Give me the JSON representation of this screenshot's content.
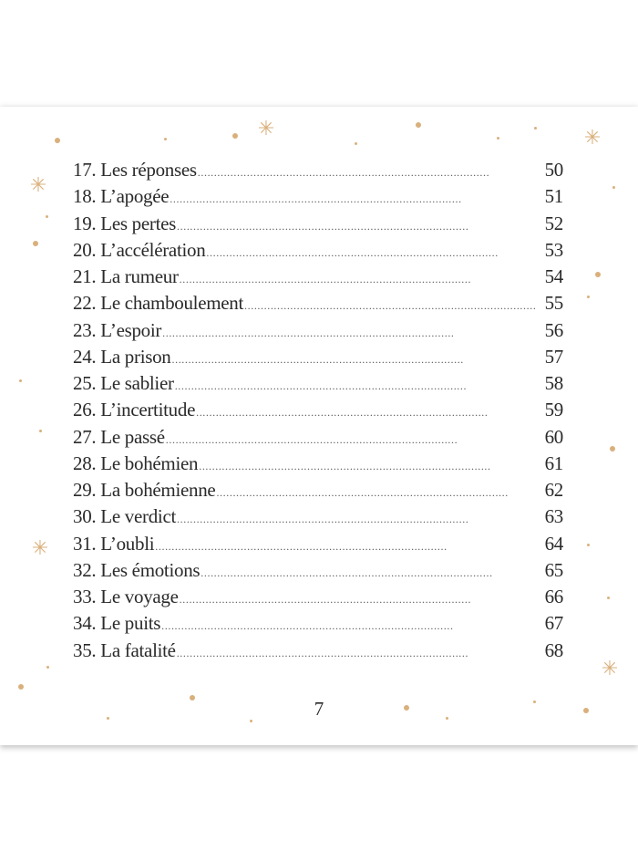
{
  "toc": [
    {
      "title": "17. Les réponses",
      "page": "50"
    },
    {
      "title": "18. L’apogée",
      "page": "51"
    },
    {
      "title": "19. Les pertes",
      "page": "52"
    },
    {
      "title": "20. L’accélération",
      "page": "53"
    },
    {
      "title": "21. La rumeur",
      "page": "54"
    },
    {
      "title": "22. Le chamboulement",
      "page": "55"
    },
    {
      "title": "23. L’espoir",
      "page": "56"
    },
    {
      "title": "24. La prison",
      "page": "57"
    },
    {
      "title": "25. Le sablier",
      "page": "58"
    },
    {
      "title": "26. L’incertitude",
      "page": "59"
    },
    {
      "title": "27. Le passé",
      "page": "60"
    },
    {
      "title": "28. Le bohémien",
      "page": "61"
    },
    {
      "title": "29. La bohémienne",
      "page": "62"
    },
    {
      "title": "30. Le verdict",
      "page": "63"
    },
    {
      "title": "31. L’oubli",
      "page": "64"
    },
    {
      "title": "32. Les émotions",
      "page": "65"
    },
    {
      "title": "33. Le voyage",
      "page": "66"
    },
    {
      "title": "34. Le puits",
      "page": "67"
    },
    {
      "title": "35. La fatalité",
      "page": "68"
    }
  ],
  "page_number": "7",
  "decoration_color": "#d9b07c"
}
